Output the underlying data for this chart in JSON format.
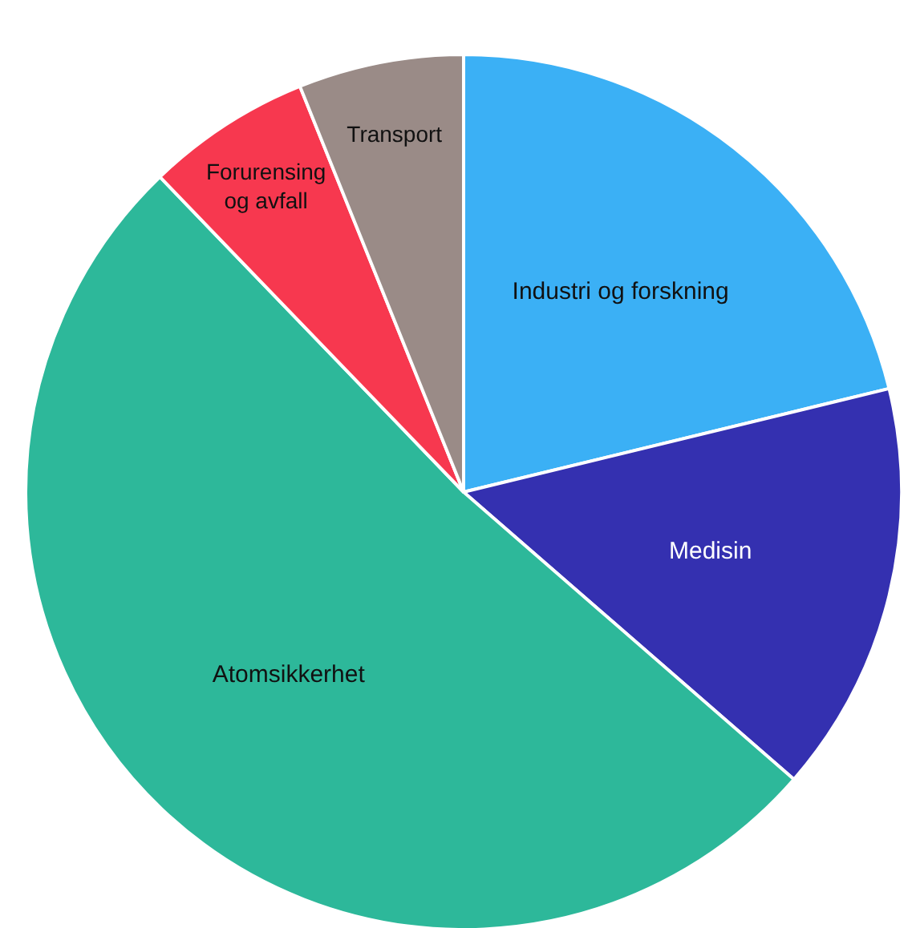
{
  "chart_data": {
    "type": "pie",
    "categories": [
      "Industri og forskning",
      "Medisin",
      "Atomsikkerhet",
      "Forurensing og avfall",
      "Transport"
    ],
    "values": [
      21.2,
      15.2,
      51.4,
      6.1,
      6.1
    ],
    "colors": [
      "#3bb0f5",
      "#3430b0",
      "#2db89a",
      "#f7384f",
      "#9a8b87"
    ]
  }
}
